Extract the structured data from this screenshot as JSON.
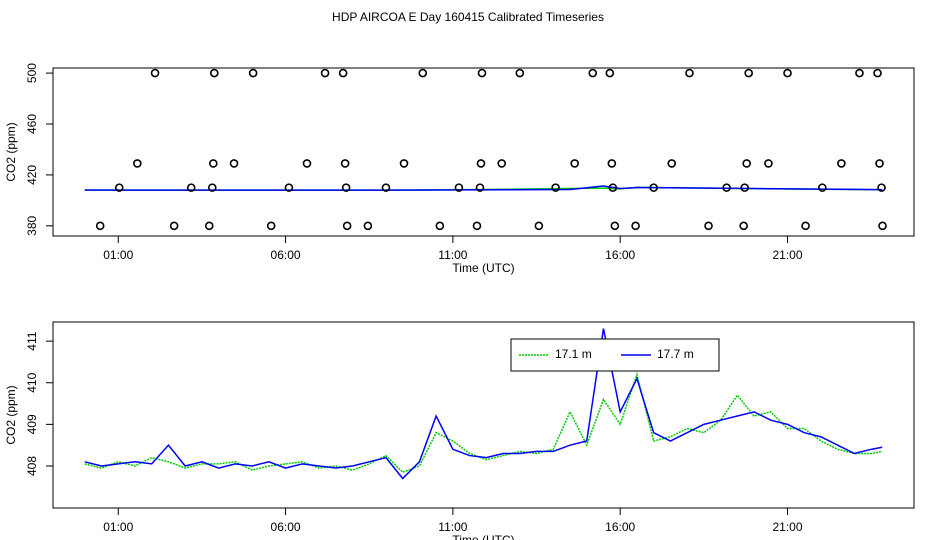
{
  "chart_data": [
    {
      "type": "scatter",
      "title": "HDP AIRCOA E  Day 160415  Calibrated Timeseries",
      "xlabel": "Time (UTC)",
      "ylabel": "CO2 (ppm)",
      "xlim": [
        -0.95,
        24.78
      ],
      "ylim": [
        372,
        504
      ],
      "xticks": [
        {
          "value": 1,
          "label": "01:00"
        },
        {
          "value": 6,
          "label": "06:00"
        },
        {
          "value": 11,
          "label": "11:00"
        },
        {
          "value": 16,
          "label": "16:00"
        },
        {
          "value": 21,
          "label": "21:00"
        }
      ],
      "yticks": [
        380,
        420,
        460,
        500
      ],
      "points": {
        "color": "#000000",
        "x": [
          2.1,
          3.87,
          5.03,
          7.18,
          7.72,
          10.1,
          11.87,
          13.0,
          15.18,
          15.69,
          18.07,
          19.84,
          21.0,
          23.15,
          23.69,
          1.57,
          3.84,
          4.46,
          6.64,
          7.78,
          9.54,
          11.84,
          12.46,
          14.64,
          15.75,
          17.54,
          19.78,
          20.43,
          22.61,
          23.75,
          1.03,
          3.18,
          3.81,
          6.1,
          7.81,
          9.0,
          11.18,
          11.81,
          14.07,
          15.78,
          17.0,
          19.18,
          19.72,
          22.04,
          23.81,
          0.46,
          2.67,
          3.72,
          5.57,
          7.84,
          8.46,
          10.61,
          11.72,
          13.57,
          15.84,
          16.46,
          18.64,
          19.69,
          21.54,
          23.84
        ],
        "values": [
          500,
          500,
          500,
          500,
          500,
          500,
          500,
          500,
          500,
          500,
          500,
          500,
          500,
          500,
          500,
          429,
          429,
          429,
          429,
          429,
          429,
          429,
          429,
          429,
          429,
          429,
          429,
          429,
          429,
          429,
          410,
          410,
          410,
          410,
          410,
          410,
          410,
          410,
          410,
          410,
          410,
          410,
          410,
          410,
          410,
          380,
          380,
          380,
          380,
          380,
          380,
          380,
          380,
          380,
          380,
          380,
          380,
          380,
          380,
          380
        ]
      },
      "series": [
        {
          "color": "#00cc00",
          "x": [
            0,
            5,
            10,
            14.5,
            15.5,
            16,
            16.5,
            20,
            23.83
          ],
          "values": [
            408.05,
            408.0,
            408.0,
            409.3,
            409.6,
            409.0,
            410.2,
            409.2,
            408.35
          ]
        },
        {
          "color": "#0000ff",
          "x": [
            0,
            5,
            10,
            14.5,
            15.5,
            16,
            16.5,
            20,
            23.83
          ],
          "values": [
            408.1,
            408.0,
            408.1,
            408.5,
            411.3,
            409.3,
            410.1,
            409.3,
            408.45
          ]
        }
      ]
    },
    {
      "type": "line",
      "xlabel": "Time (UTC)",
      "ylabel": "CO2 (ppm)",
      "xlim": [
        -0.95,
        24.78
      ],
      "ylim": [
        406.99,
        411.46
      ],
      "xticks": [
        {
          "value": 1,
          "label": "01:00"
        },
        {
          "value": 6,
          "label": "06:00"
        },
        {
          "value": 11,
          "label": "11:00"
        },
        {
          "value": 16,
          "label": "16:00"
        },
        {
          "value": 21,
          "label": "21:00"
        }
      ],
      "yticks": [
        408,
        409,
        410,
        411
      ],
      "legend": "top",
      "x": [
        0,
        0.5,
        1,
        1.5,
        2,
        2.5,
        3,
        3.5,
        4,
        4.5,
        5,
        5.5,
        6,
        6.5,
        7,
        7.5,
        8,
        8.5,
        9,
        9.5,
        10,
        10.5,
        11,
        11.5,
        12,
        12.5,
        13,
        13.5,
        14,
        14.5,
        15,
        15.5,
        16,
        16.5,
        17,
        17.5,
        18,
        18.5,
        19,
        19.5,
        20,
        20.5,
        21,
        21.5,
        22,
        22.5,
        23,
        23.5,
        23.83
      ],
      "series": [
        {
          "name": "17.1 m",
          "color": "#00cc00",
          "dash": true,
          "values": [
            408.05,
            407.95,
            408.1,
            408.0,
            408.2,
            408.1,
            407.95,
            408.05,
            408.05,
            408.1,
            407.9,
            408.0,
            408.05,
            408.1,
            407.95,
            408.0,
            407.9,
            408.05,
            408.25,
            407.85,
            408.0,
            408.8,
            408.6,
            408.3,
            408.15,
            408.25,
            408.35,
            408.3,
            408.4,
            409.3,
            408.5,
            409.6,
            409.0,
            410.2,
            408.6,
            408.7,
            408.9,
            408.8,
            409.1,
            409.7,
            409.2,
            409.3,
            408.9,
            408.9,
            408.6,
            408.4,
            408.3,
            408.3,
            408.35
          ]
        },
        {
          "name": "17.7 m",
          "color": "#0000ff",
          "dash": false,
          "values": [
            408.1,
            408.0,
            408.05,
            408.1,
            408.05,
            408.5,
            408.0,
            408.1,
            407.95,
            408.05,
            408.0,
            408.1,
            407.95,
            408.05,
            408.0,
            407.95,
            408.0,
            408.1,
            408.2,
            407.7,
            408.1,
            409.2,
            408.4,
            408.25,
            408.2,
            408.3,
            408.3,
            408.35,
            408.35,
            408.5,
            408.6,
            411.3,
            409.3,
            410.1,
            408.8,
            408.6,
            408.8,
            409.0,
            409.1,
            409.2,
            409.3,
            409.1,
            409.0,
            408.8,
            408.7,
            408.5,
            408.3,
            408.4,
            408.45
          ]
        }
      ]
    }
  ]
}
